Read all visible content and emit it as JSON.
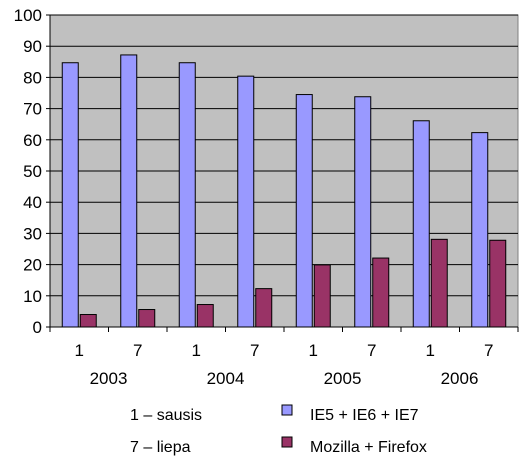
{
  "chart_data": {
    "type": "bar",
    "categories": [
      "1",
      "7",
      "1",
      "7",
      "1",
      "7",
      "1",
      "7"
    ],
    "groups": [
      {
        "label": "2003",
        "span": 2
      },
      {
        "label": "2004",
        "span": 2
      },
      {
        "label": "2005",
        "span": 2
      },
      {
        "label": "2006",
        "span": 2
      }
    ],
    "series": [
      {
        "name": "IE5 + IE6 + IE7",
        "color": "#9999ff",
        "values": [
          84.7,
          87.2,
          84.7,
          80.4,
          74.5,
          73.8,
          66.1,
          62.3
        ]
      },
      {
        "name": "Mozilla + Firefox",
        "color": "#993366",
        "values": [
          4.0,
          5.6,
          7.2,
          12.3,
          19.9,
          22.1,
          28.1,
          27.8
        ]
      }
    ],
    "ylim": [
      0,
      100
    ],
    "yticks": [
      0,
      10,
      20,
      30,
      40,
      50,
      60,
      70,
      80,
      90,
      100
    ],
    "grid": true,
    "plot_background": "#c0c0c0",
    "notes": [
      "1 – sausis",
      "7 – liepa"
    ],
    "legend_position": "bottom"
  }
}
